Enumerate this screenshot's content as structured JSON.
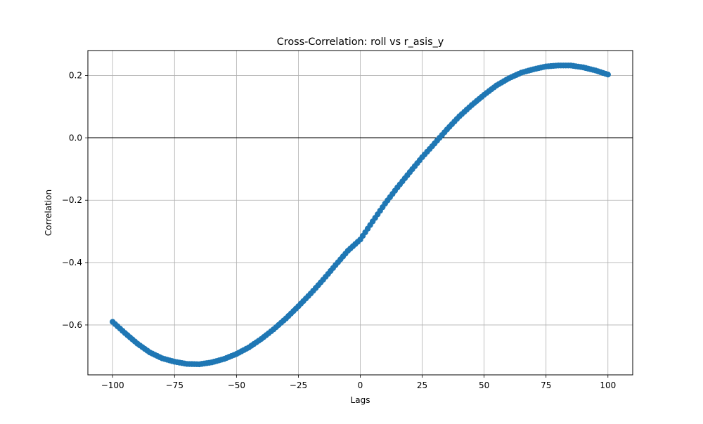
{
  "chart_data": {
    "type": "scatter",
    "title": "Cross-Correlation: roll vs r_asis_y",
    "xlabel": "Lags",
    "ylabel": "Correlation",
    "xlim": [
      -110,
      110
    ],
    "ylim": [
      -0.76,
      0.28
    ],
    "xticks": [
      -100,
      -75,
      -50,
      -25,
      0,
      25,
      50,
      75,
      100
    ],
    "xtick_labels": [
      "−100",
      "−75",
      "−50",
      "−25",
      "0",
      "25",
      "50",
      "75",
      "100"
    ],
    "yticks": [
      -0.6,
      -0.4,
      -0.2,
      0.0,
      0.2
    ],
    "ytick_labels": [
      "−0.6",
      "−0.4",
      "−0.2",
      "0.0",
      "0.2"
    ],
    "grid": true,
    "reference_line_y": 0.0,
    "marker_color": "#1f77b4",
    "reference_line_color": "#000000",
    "grid_color": "#b0b0b0",
    "series": [
      {
        "marker": "circle",
        "x": [
          -100,
          -95,
          -90,
          -85,
          -80,
          -75,
          -70,
          -65,
          -60,
          -55,
          -50,
          -45,
          -40,
          -35,
          -30,
          -25,
          -20,
          -15,
          -10,
          -5,
          0,
          5,
          10,
          15,
          20,
          25,
          30,
          35,
          40,
          45,
          50,
          55,
          60,
          65,
          70,
          75,
          80,
          85,
          90,
          95,
          100
        ],
        "y": [
          -0.59,
          -0.626,
          -0.66,
          -0.688,
          -0.707,
          -0.718,
          -0.725,
          -0.726,
          -0.72,
          -0.709,
          -0.693,
          -0.672,
          -0.645,
          -0.614,
          -0.579,
          -0.54,
          -0.499,
          -0.455,
          -0.408,
          -0.362,
          -0.326,
          -0.268,
          -0.211,
          -0.159,
          -0.11,
          -0.062,
          -0.018,
          0.027,
          0.069,
          0.105,
          0.138,
          0.168,
          0.191,
          0.209,
          0.22,
          0.229,
          0.232,
          0.232,
          0.226,
          0.216,
          0.203
        ]
      }
    ]
  }
}
